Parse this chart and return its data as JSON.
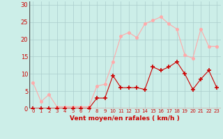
{
  "hours": [
    0,
    1,
    2,
    3,
    4,
    5,
    6,
    7,
    8,
    9,
    10,
    11,
    12,
    13,
    14,
    15,
    16,
    17,
    18,
    19,
    20,
    21,
    22,
    23
  ],
  "wind_avg": [
    0,
    0,
    0,
    0,
    0,
    0,
    0,
    0,
    3,
    3,
    9.5,
    6,
    6,
    6,
    5.5,
    12,
    11,
    12,
    13.5,
    10,
    5.5,
    8.5,
    11,
    6
  ],
  "wind_gust": [
    7.5,
    2,
    4,
    0.5,
    0.5,
    0.5,
    0.5,
    0.5,
    6.5,
    7,
    13.5,
    21,
    22,
    20.5,
    24.5,
    25.5,
    26.5,
    24.5,
    23,
    15.5,
    14.5,
    23,
    18,
    18
  ],
  "avg_color": "#cc0000",
  "gust_color": "#ffaaaa",
  "bg_color": "#cceee8",
  "grid_color": "#aacccc",
  "xlabel": "Vent moyen/en rafales ( km/h )",
  "xlabel_color": "#cc0000",
  "ylabel_ticks": [
    0,
    5,
    10,
    15,
    20,
    25,
    30
  ],
  "ylim": [
    0,
    31
  ],
  "xlim": [
    -0.5,
    23.5
  ]
}
